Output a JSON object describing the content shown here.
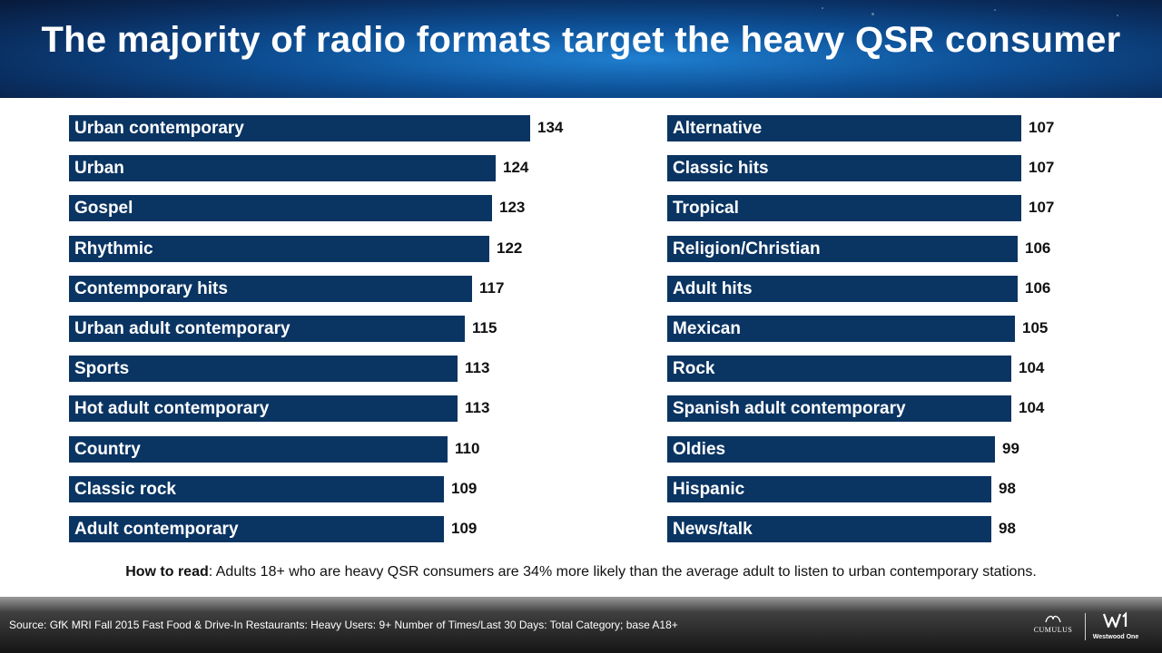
{
  "title": "The majority of radio formats target the heavy QSR consumer",
  "chart_data": [
    {
      "type": "bar",
      "orientation": "horizontal",
      "categories": [
        "Urban contemporary",
        "Urban",
        "Gospel",
        "Rhythmic",
        "Contemporary hits",
        "Urban adult contemporary",
        "Sports",
        "Hot adult contemporary",
        "Country",
        "Classic rock",
        "Adult contemporary"
      ],
      "values": [
        134,
        124,
        123,
        122,
        117,
        115,
        113,
        113,
        110,
        109,
        109
      ],
      "value_labels": [
        "134",
        "124",
        "123",
        "122",
        "117",
        "115",
        "113",
        "113",
        "110",
        "109",
        "109"
      ],
      "bar_color": "#0a3462",
      "label_color": "#ffffff",
      "grid": false
    },
    {
      "type": "bar",
      "orientation": "horizontal",
      "categories": [
        "Alternative",
        "Classic hits",
        "Tropical",
        "Religion/Christian",
        "Adult hits",
        "Mexican",
        "Rock",
        "Spanish adult contemporary",
        "Oldies",
        "Hispanic",
        "News/talk"
      ],
      "values": [
        107,
        107,
        107,
        106,
        106,
        105,
        104,
        104,
        99,
        98,
        98
      ],
      "value_labels": [
        "107",
        "107",
        "107",
        "106",
        "106",
        "105",
        "104",
        "104",
        "99",
        "98",
        "98"
      ],
      "bar_color": "#0a3462",
      "label_color": "#ffffff",
      "grid": false
    }
  ],
  "how_to_read": {
    "label": "How to read",
    "text": ": Adults 18+ who are heavy QSR consumers are 34% more likely than the average adult to listen to urban contemporary stations."
  },
  "footer": {
    "source": "Source: GfK MRI Fall 2015 Fast Food & Drive-In Restaurants: Heavy Users: 9+ Number of Times/Last 30 Days: Total Category; base A18+",
    "logo_cumulus": "CUMULUS",
    "logo_westwood": "Westwood One",
    "logo_cumulus_icon": "cumulus-swirl-icon",
    "logo_westwood_icon": "westwood-w1-icon"
  }
}
